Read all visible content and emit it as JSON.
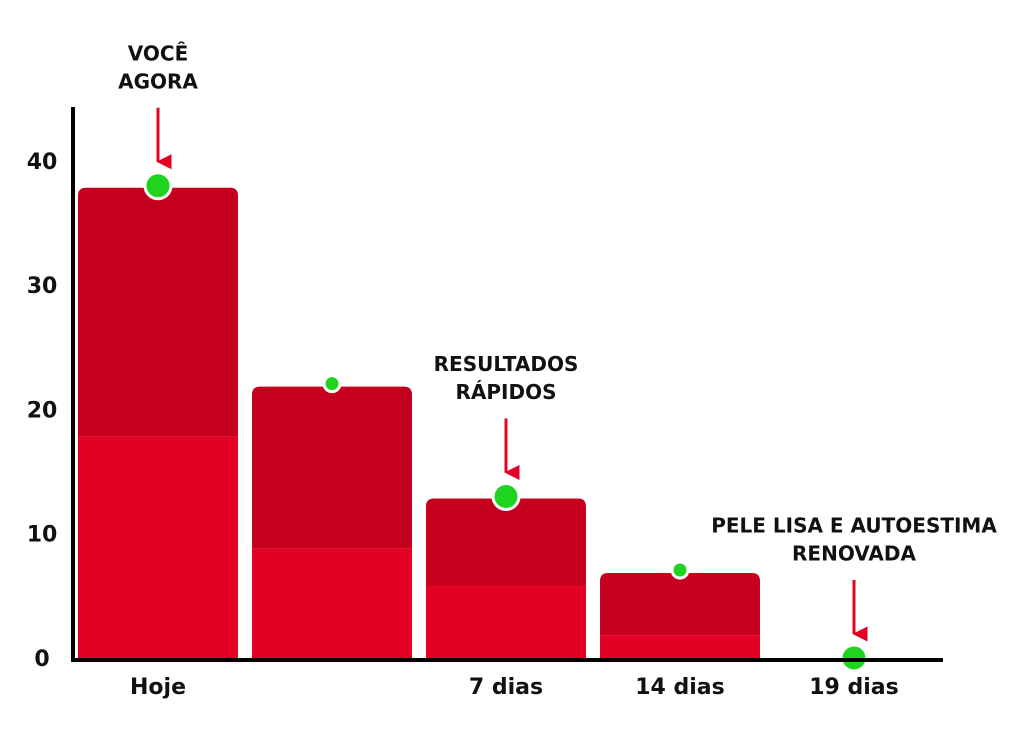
{
  "chart_data": {
    "type": "stacked_bar",
    "categories": [
      "Hoje",
      null,
      "7 dias",
      "14 dias",
      "19 dias"
    ],
    "series": [
      {
        "color": "#e30022",
        "values": [
          18,
          9,
          6,
          2,
          0
        ]
      },
      {
        "color": "#c4001e",
        "values": [
          20,
          13,
          7,
          5,
          0
        ]
      }
    ],
    "ylim": [
      0,
      44.5
    ],
    "yticks": [
      0,
      10,
      20,
      30,
      40
    ],
    "annotations": [
      {
        "category": "Hoje",
        "lines": [
          "VOCÊ",
          "AGORA"
        ]
      },
      {
        "category": "7 dias",
        "lines": [
          "RESULTADOS",
          "RÁPIDOS"
        ]
      },
      {
        "category": "19 dias",
        "lines": [
          "PELE LISA E AUTOESTIMA",
          "RENOVADA"
        ]
      }
    ]
  }
}
